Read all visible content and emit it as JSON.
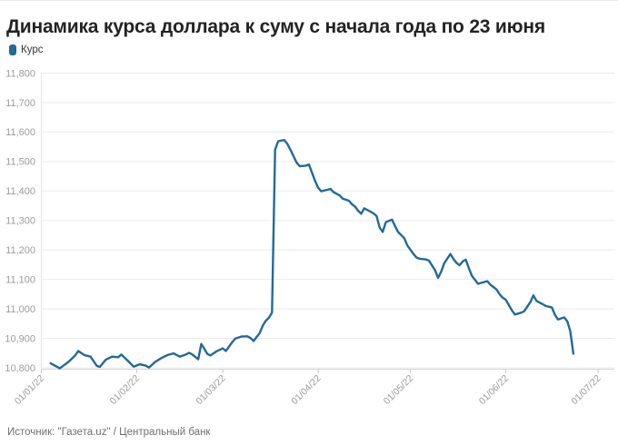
{
  "header": {
    "title": "Динамика курса доллара к суму с начала года по 23 июня"
  },
  "legend": {
    "label": "Курс"
  },
  "footer": {
    "source": "Источник: \"Газета.uz\" / Центральный банк"
  },
  "colors": {
    "line": "#236999",
    "grid": "#ebebeb",
    "axis_line": "#d4d4d4",
    "tick": "#c9c9c9",
    "axis_text": "#9b9b9b",
    "yaxis_line": "#e4e4e4"
  },
  "chart_data": {
    "type": "line",
    "title": "Динамика курса доллара к суму с начала года по 23 июня",
    "series_name": "Курс",
    "x_type": "date",
    "x_range": [
      "2022-01-01",
      "2022-07-01"
    ],
    "ylim": [
      10800,
      11800
    ],
    "y_step": 100,
    "grid": "horizontal",
    "legend_position": "top-left",
    "y_tick_labels": [
      "10,800",
      "10,900",
      "11,000",
      "11,100",
      "11,200",
      "11,300",
      "11,400",
      "11,500",
      "11,600",
      "11,700",
      "11,800"
    ],
    "x_ticks": [
      {
        "date": "2022-01-01",
        "label": "01/01/22"
      },
      {
        "date": "2022-02-01",
        "label": "01/02/22"
      },
      {
        "date": "2022-03-01",
        "label": "01/03/22"
      },
      {
        "date": "2022-04-01",
        "label": "01/04/22"
      },
      {
        "date": "2022-05-01",
        "label": "01/05/22"
      },
      {
        "date": "2022-06-01",
        "label": "01/06/22"
      },
      {
        "date": "2022-07-01",
        "label": "01/07/22"
      }
    ],
    "points": [
      [
        "2022-01-04",
        10815
      ],
      [
        "2022-01-05",
        10810
      ],
      [
        "2022-01-07",
        10798
      ],
      [
        "2022-01-10",
        10822
      ],
      [
        "2022-01-12",
        10842
      ],
      [
        "2022-01-13",
        10857
      ],
      [
        "2022-01-15",
        10843
      ],
      [
        "2022-01-17",
        10838
      ],
      [
        "2022-01-19",
        10807
      ],
      [
        "2022-01-20",
        10803
      ],
      [
        "2022-01-22",
        10828
      ],
      [
        "2022-01-24",
        10838
      ],
      [
        "2022-01-26",
        10836
      ],
      [
        "2022-01-27",
        10845
      ],
      [
        "2022-01-29",
        10825
      ],
      [
        "2022-01-31",
        10804
      ],
      [
        "2022-02-02",
        10812
      ],
      [
        "2022-02-04",
        10807
      ],
      [
        "2022-02-05",
        10801
      ],
      [
        "2022-02-07",
        10820
      ],
      [
        "2022-02-09",
        10833
      ],
      [
        "2022-02-11",
        10843
      ],
      [
        "2022-02-13",
        10849
      ],
      [
        "2022-02-15",
        10838
      ],
      [
        "2022-02-17",
        10845
      ],
      [
        "2022-02-18",
        10851
      ],
      [
        "2022-02-19",
        10846
      ],
      [
        "2022-02-21",
        10829
      ],
      [
        "2022-02-22",
        10881
      ],
      [
        "2022-02-24",
        10847
      ],
      [
        "2022-02-25",
        10842
      ],
      [
        "2022-02-27",
        10856
      ],
      [
        "2022-03-01",
        10866
      ],
      [
        "2022-03-02",
        10857
      ],
      [
        "2022-03-04",
        10886
      ],
      [
        "2022-03-05",
        10899
      ],
      [
        "2022-03-07",
        10906
      ],
      [
        "2022-03-09",
        10907
      ],
      [
        "2022-03-10",
        10901
      ],
      [
        "2022-03-11",
        10891
      ],
      [
        "2022-03-13",
        10918
      ],
      [
        "2022-03-14",
        10943
      ],
      [
        "2022-03-15",
        10960
      ],
      [
        "2022-03-16",
        10970
      ],
      [
        "2022-03-17",
        10987
      ],
      [
        "2022-03-18",
        11540
      ],
      [
        "2022-03-19",
        11569
      ],
      [
        "2022-03-21",
        11573
      ],
      [
        "2022-03-22",
        11560
      ],
      [
        "2022-03-23",
        11540
      ],
      [
        "2022-03-24",
        11518
      ],
      [
        "2022-03-25",
        11496
      ],
      [
        "2022-03-26",
        11484
      ],
      [
        "2022-03-28",
        11486
      ],
      [
        "2022-03-29",
        11490
      ],
      [
        "2022-03-30",
        11462
      ],
      [
        "2022-03-31",
        11434
      ],
      [
        "2022-04-01",
        11411
      ],
      [
        "2022-04-02",
        11399
      ],
      [
        "2022-04-04",
        11404
      ],
      [
        "2022-04-05",
        11407
      ],
      [
        "2022-04-06",
        11396
      ],
      [
        "2022-04-08",
        11385
      ],
      [
        "2022-04-09",
        11374
      ],
      [
        "2022-04-11",
        11367
      ],
      [
        "2022-04-12",
        11355
      ],
      [
        "2022-04-13",
        11347
      ],
      [
        "2022-04-14",
        11333
      ],
      [
        "2022-04-15",
        11323
      ],
      [
        "2022-04-16",
        11341
      ],
      [
        "2022-04-18",
        11330
      ],
      [
        "2022-04-19",
        11324
      ],
      [
        "2022-04-20",
        11315
      ],
      [
        "2022-04-21",
        11276
      ],
      [
        "2022-04-22",
        11261
      ],
      [
        "2022-04-23",
        11294
      ],
      [
        "2022-04-25",
        11303
      ],
      [
        "2022-04-26",
        11281
      ],
      [
        "2022-04-27",
        11261
      ],
      [
        "2022-04-29",
        11240
      ],
      [
        "2022-04-30",
        11215
      ],
      [
        "2022-05-02",
        11186
      ],
      [
        "2022-05-03",
        11174
      ],
      [
        "2022-05-04",
        11170
      ],
      [
        "2022-05-06",
        11168
      ],
      [
        "2022-05-07",
        11164
      ],
      [
        "2022-05-09",
        11132
      ],
      [
        "2022-05-10",
        11105
      ],
      [
        "2022-05-11",
        11126
      ],
      [
        "2022-05-12",
        11155
      ],
      [
        "2022-05-14",
        11186
      ],
      [
        "2022-05-15",
        11169
      ],
      [
        "2022-05-16",
        11156
      ],
      [
        "2022-05-17",
        11148
      ],
      [
        "2022-05-18",
        11161
      ],
      [
        "2022-05-19",
        11167
      ],
      [
        "2022-05-20",
        11138
      ],
      [
        "2022-05-21",
        11112
      ],
      [
        "2022-05-23",
        11085
      ],
      [
        "2022-05-24",
        11088
      ],
      [
        "2022-05-26",
        11094
      ],
      [
        "2022-05-27",
        11082
      ],
      [
        "2022-05-29",
        11066
      ],
      [
        "2022-05-30",
        11050
      ],
      [
        "2022-05-31",
        11038
      ],
      [
        "2022-06-01",
        11031
      ],
      [
        "2022-06-03",
        10995
      ],
      [
        "2022-06-04",
        10981
      ],
      [
        "2022-06-06",
        10987
      ],
      [
        "2022-06-07",
        10992
      ],
      [
        "2022-06-09",
        11023
      ],
      [
        "2022-06-10",
        11046
      ],
      [
        "2022-06-11",
        11027
      ],
      [
        "2022-06-13",
        11016
      ],
      [
        "2022-06-14",
        11010
      ],
      [
        "2022-06-16",
        11005
      ],
      [
        "2022-06-17",
        10980
      ],
      [
        "2022-06-18",
        10964
      ],
      [
        "2022-06-20",
        10971
      ],
      [
        "2022-06-21",
        10958
      ],
      [
        "2022-06-22",
        10924
      ],
      [
        "2022-06-23",
        10848
      ]
    ]
  }
}
